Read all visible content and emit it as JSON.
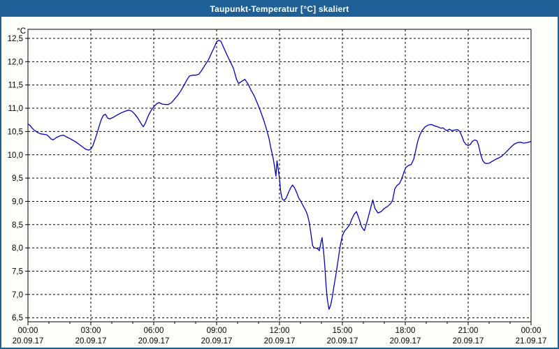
{
  "window": {
    "title": "Taupunkt-Temperatur [°C] skaliert",
    "title_bar_color": "#1E5F96",
    "border_color": "#1E5F96",
    "background_color": "#FBFFF7"
  },
  "chart_data": {
    "type": "line",
    "title": "Taupunkt-Temperatur [°C] skaliert",
    "ylabel": "°C",
    "ylim": [
      6.5,
      12.5
    ],
    "y_step": 0.5,
    "y_tick_labels": [
      "12,5",
      "12,0",
      "11,5",
      "11,0",
      "10,5",
      "10,0",
      "9,5",
      "9,0",
      "8,5",
      "8,0",
      "7,5",
      "7,0",
      "6,5"
    ],
    "xlim_hours": [
      0,
      24
    ],
    "x_major_step_hours": 3,
    "x_minor_step_hours": 1,
    "x_tick_labels": [
      {
        "time": "00:00",
        "date": "20.09.17"
      },
      {
        "time": "03:00",
        "date": "20.09.17"
      },
      {
        "time": "06:00",
        "date": "20.09.17"
      },
      {
        "time": "09:00",
        "date": "20.09.17"
      },
      {
        "time": "12:00",
        "date": "20.09.17"
      },
      {
        "time": "15:00",
        "date": "20.09.17"
      },
      {
        "time": "18:00",
        "date": "20.09.17"
      },
      {
        "time": "21:00",
        "date": "20.09.17"
      },
      {
        "time": "00:00",
        "date": "21.09.17"
      }
    ],
    "grid": "dashed-black",
    "plot_background": "#FFFFFF",
    "line_color": "#0000C8",
    "series": [
      {
        "name": "Taupunkt-Temperatur",
        "points": [
          [
            0.0,
            10.66
          ],
          [
            0.1,
            10.63
          ],
          [
            0.2,
            10.57
          ],
          [
            0.3,
            10.53
          ],
          [
            0.45,
            10.48
          ],
          [
            0.6,
            10.45
          ],
          [
            0.75,
            10.44
          ],
          [
            0.9,
            10.43
          ],
          [
            1.0,
            10.39
          ],
          [
            1.1,
            10.34
          ],
          [
            1.2,
            10.32
          ],
          [
            1.35,
            10.37
          ],
          [
            1.55,
            10.41
          ],
          [
            1.7,
            10.42
          ],
          [
            1.85,
            10.38
          ],
          [
            2.0,
            10.35
          ],
          [
            2.15,
            10.31
          ],
          [
            2.3,
            10.27
          ],
          [
            2.45,
            10.22
          ],
          [
            2.6,
            10.17
          ],
          [
            2.75,
            10.12
          ],
          [
            2.9,
            10.1
          ],
          [
            3.0,
            10.12
          ],
          [
            3.1,
            10.2
          ],
          [
            3.2,
            10.33
          ],
          [
            3.3,
            10.47
          ],
          [
            3.4,
            10.62
          ],
          [
            3.5,
            10.76
          ],
          [
            3.6,
            10.85
          ],
          [
            3.7,
            10.87
          ],
          [
            3.8,
            10.79
          ],
          [
            3.9,
            10.77
          ],
          [
            4.05,
            10.8
          ],
          [
            4.2,
            10.84
          ],
          [
            4.4,
            10.89
          ],
          [
            4.6,
            10.93
          ],
          [
            4.8,
            10.96
          ],
          [
            4.95,
            10.94
          ],
          [
            5.1,
            10.87
          ],
          [
            5.25,
            10.78
          ],
          [
            5.4,
            10.67
          ],
          [
            5.5,
            10.6
          ],
          [
            5.6,
            10.68
          ],
          [
            5.75,
            10.85
          ],
          [
            5.9,
            10.97
          ],
          [
            6.0,
            11.03
          ],
          [
            6.15,
            11.1
          ],
          [
            6.25,
            11.12
          ],
          [
            6.4,
            11.09
          ],
          [
            6.55,
            11.08
          ],
          [
            6.7,
            11.08
          ],
          [
            6.85,
            11.12
          ],
          [
            7.0,
            11.2
          ],
          [
            7.15,
            11.28
          ],
          [
            7.3,
            11.38
          ],
          [
            7.45,
            11.5
          ],
          [
            7.6,
            11.62
          ],
          [
            7.7,
            11.69
          ],
          [
            7.85,
            11.71
          ],
          [
            8.0,
            11.71
          ],
          [
            8.15,
            11.73
          ],
          [
            8.3,
            11.82
          ],
          [
            8.45,
            11.93
          ],
          [
            8.6,
            12.03
          ],
          [
            8.75,
            12.18
          ],
          [
            8.9,
            12.32
          ],
          [
            9.0,
            12.43
          ],
          [
            9.1,
            12.46
          ],
          [
            9.2,
            12.44
          ],
          [
            9.35,
            12.29
          ],
          [
            9.5,
            12.14
          ],
          [
            9.65,
            12.0
          ],
          [
            9.8,
            11.86
          ],
          [
            9.95,
            11.62
          ],
          [
            10.05,
            11.53
          ],
          [
            10.2,
            11.58
          ],
          [
            10.35,
            11.62
          ],
          [
            10.5,
            11.52
          ],
          [
            10.65,
            11.38
          ],
          [
            10.8,
            11.26
          ],
          [
            10.95,
            11.1
          ],
          [
            11.1,
            10.93
          ],
          [
            11.25,
            10.74
          ],
          [
            11.4,
            10.52
          ],
          [
            11.5,
            10.35
          ],
          [
            11.6,
            10.12
          ],
          [
            11.7,
            9.92
          ],
          [
            11.78,
            9.7
          ],
          [
            11.83,
            9.54
          ],
          [
            11.88,
            9.87
          ],
          [
            11.93,
            9.72
          ],
          [
            12.0,
            9.48
          ],
          [
            12.06,
            9.2
          ],
          [
            12.13,
            9.05
          ],
          [
            12.22,
            9.02
          ],
          [
            12.32,
            9.07
          ],
          [
            12.42,
            9.18
          ],
          [
            12.52,
            9.28
          ],
          [
            12.62,
            9.35
          ],
          [
            12.72,
            9.29
          ],
          [
            12.82,
            9.19
          ],
          [
            12.92,
            9.07
          ],
          [
            13.02,
            9.0
          ],
          [
            13.12,
            8.91
          ],
          [
            13.22,
            8.83
          ],
          [
            13.32,
            8.73
          ],
          [
            13.42,
            8.55
          ],
          [
            13.5,
            8.3
          ],
          [
            13.58,
            8.05
          ],
          [
            13.65,
            8.0
          ],
          [
            13.8,
            7.99
          ],
          [
            13.9,
            7.94
          ],
          [
            13.97,
            8.1
          ],
          [
            14.03,
            8.22
          ],
          [
            14.1,
            7.95
          ],
          [
            14.16,
            7.62
          ],
          [
            14.22,
            7.2
          ],
          [
            14.28,
            6.9
          ],
          [
            14.36,
            6.68
          ],
          [
            14.44,
            6.77
          ],
          [
            14.52,
            6.95
          ],
          [
            14.6,
            7.18
          ],
          [
            14.7,
            7.45
          ],
          [
            14.8,
            7.75
          ],
          [
            14.9,
            8.05
          ],
          [
            15.0,
            8.26
          ],
          [
            15.1,
            8.36
          ],
          [
            15.22,
            8.42
          ],
          [
            15.35,
            8.5
          ],
          [
            15.45,
            8.62
          ],
          [
            15.56,
            8.72
          ],
          [
            15.67,
            8.78
          ],
          [
            15.8,
            8.62
          ],
          [
            15.92,
            8.45
          ],
          [
            16.05,
            8.37
          ],
          [
            16.2,
            8.6
          ],
          [
            16.35,
            8.86
          ],
          [
            16.45,
            9.03
          ],
          [
            16.55,
            8.85
          ],
          [
            16.7,
            8.75
          ],
          [
            16.85,
            8.78
          ],
          [
            17.0,
            8.85
          ],
          [
            17.15,
            8.89
          ],
          [
            17.3,
            8.95
          ],
          [
            17.4,
            9.03
          ],
          [
            17.5,
            9.27
          ],
          [
            17.6,
            9.34
          ],
          [
            17.72,
            9.38
          ],
          [
            17.83,
            9.48
          ],
          [
            17.93,
            9.62
          ],
          [
            18.03,
            9.73
          ],
          [
            18.15,
            9.77
          ],
          [
            18.28,
            9.79
          ],
          [
            18.4,
            9.9
          ],
          [
            18.5,
            10.1
          ],
          [
            18.6,
            10.3
          ],
          [
            18.7,
            10.43
          ],
          [
            18.8,
            10.52
          ],
          [
            18.95,
            10.6
          ],
          [
            19.1,
            10.64
          ],
          [
            19.25,
            10.65
          ],
          [
            19.4,
            10.62
          ],
          [
            19.55,
            10.6
          ],
          [
            19.7,
            10.57
          ],
          [
            19.8,
            10.58
          ],
          [
            19.9,
            10.54
          ],
          [
            20.0,
            10.52
          ],
          [
            20.1,
            10.55
          ],
          [
            20.22,
            10.52
          ],
          [
            20.35,
            10.53
          ],
          [
            20.5,
            10.54
          ],
          [
            20.6,
            10.5
          ],
          [
            20.7,
            10.4
          ],
          [
            20.8,
            10.28
          ],
          [
            20.9,
            10.22
          ],
          [
            21.0,
            10.2
          ],
          [
            21.1,
            10.22
          ],
          [
            21.2,
            10.29
          ],
          [
            21.32,
            10.32
          ],
          [
            21.42,
            10.3
          ],
          [
            21.5,
            10.2
          ],
          [
            21.6,
            10.0
          ],
          [
            21.7,
            9.87
          ],
          [
            21.8,
            9.82
          ],
          [
            21.9,
            9.81
          ],
          [
            22.0,
            9.82
          ],
          [
            22.15,
            9.86
          ],
          [
            22.3,
            9.9
          ],
          [
            22.45,
            9.93
          ],
          [
            22.6,
            9.97
          ],
          [
            22.75,
            10.03
          ],
          [
            22.9,
            10.1
          ],
          [
            23.05,
            10.17
          ],
          [
            23.2,
            10.23
          ],
          [
            23.35,
            10.26
          ],
          [
            23.5,
            10.27
          ],
          [
            23.65,
            10.25
          ],
          [
            23.8,
            10.26
          ],
          [
            23.95,
            10.28
          ],
          [
            24.0,
            10.29
          ]
        ]
      }
    ]
  }
}
